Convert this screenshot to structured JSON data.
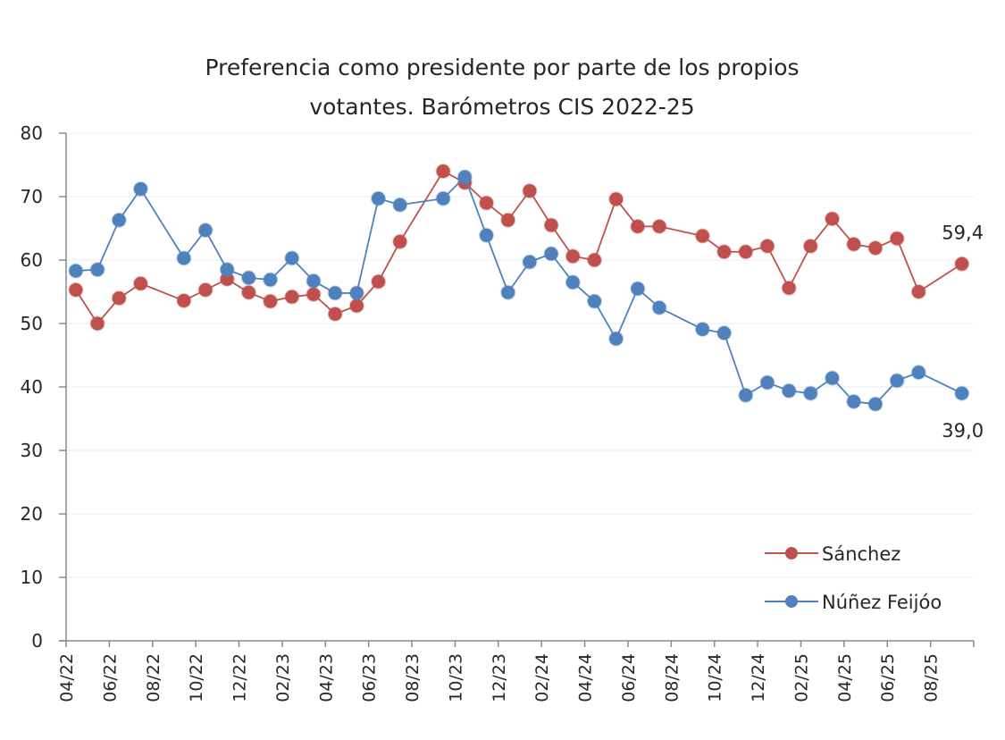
{
  "chart_data": {
    "type": "line",
    "title": [
      "Preferencia como presidente por parte de los propios",
      "votantes. Barómetros CIS 2022-25"
    ],
    "xlabel": "",
    "ylabel": "",
    "ylim": [
      0,
      80
    ],
    "yticks": [
      0,
      10,
      20,
      30,
      40,
      50,
      60,
      70,
      80
    ],
    "grid": true,
    "legend_position": "bottom-right",
    "x_axis_range": [
      "04/22",
      "10/25"
    ],
    "xtick_labels": [
      "04/22",
      "06/22",
      "08/22",
      "10/22",
      "12/22",
      "02/23",
      "04/23",
      "06/23",
      "08/23",
      "10/23",
      "12/23",
      "02/24",
      "04/24",
      "06/24",
      "08/24",
      "10/24",
      "12/24",
      "02/25",
      "04/25",
      "06/25",
      "08/25"
    ],
    "x": [
      "04/22",
      "05/22",
      "06/22",
      "07/22",
      "09/22",
      "10/22",
      "11/22",
      "12/22",
      "01/23",
      "02/23",
      "03/23",
      "04/23",
      "05/23",
      "06/23",
      "07/23",
      "09/23",
      "10/23",
      "11/23",
      "12/23",
      "01/24",
      "02/24",
      "03/24",
      "04/24",
      "05/24",
      "06/24",
      "07/24",
      "09/24",
      "10/24",
      "11/24",
      "12/24",
      "01/25",
      "02/25",
      "03/25",
      "04/25",
      "05/25",
      "06/25",
      "07/25",
      "09/25"
    ],
    "series": [
      {
        "name": "Sánchez",
        "color": "#c0504d",
        "values": [
          55.3,
          50.0,
          54.0,
          56.3,
          53.6,
          55.3,
          57.0,
          54.9,
          53.5,
          54.2,
          54.6,
          51.5,
          52.8,
          56.6,
          62.9,
          74.0,
          72.2,
          69.0,
          66.3,
          70.9,
          65.5,
          60.6,
          60.0,
          69.6,
          65.3,
          65.3,
          63.8,
          61.3,
          61.3,
          62.2,
          55.6,
          62.2,
          66.5,
          62.5,
          61.9,
          63.4,
          55.0,
          59.4
        ],
        "end_label": "59,4"
      },
      {
        "name": "Núñez Feijóo",
        "color": "#4f81bd",
        "values": [
          58.3,
          58.5,
          66.3,
          71.2,
          60.3,
          64.7,
          58.5,
          57.2,
          56.9,
          60.3,
          56.7,
          54.8,
          54.8,
          69.7,
          68.7,
          69.7,
          73.1,
          63.9,
          54.9,
          59.7,
          61.0,
          56.5,
          53.5,
          47.6,
          55.5,
          52.5,
          49.1,
          48.5,
          38.7,
          40.7,
          39.4,
          39.0,
          41.4,
          37.7,
          37.3,
          41.0,
          42.3,
          39.0
        ],
        "end_label": "39,0"
      }
    ]
  }
}
